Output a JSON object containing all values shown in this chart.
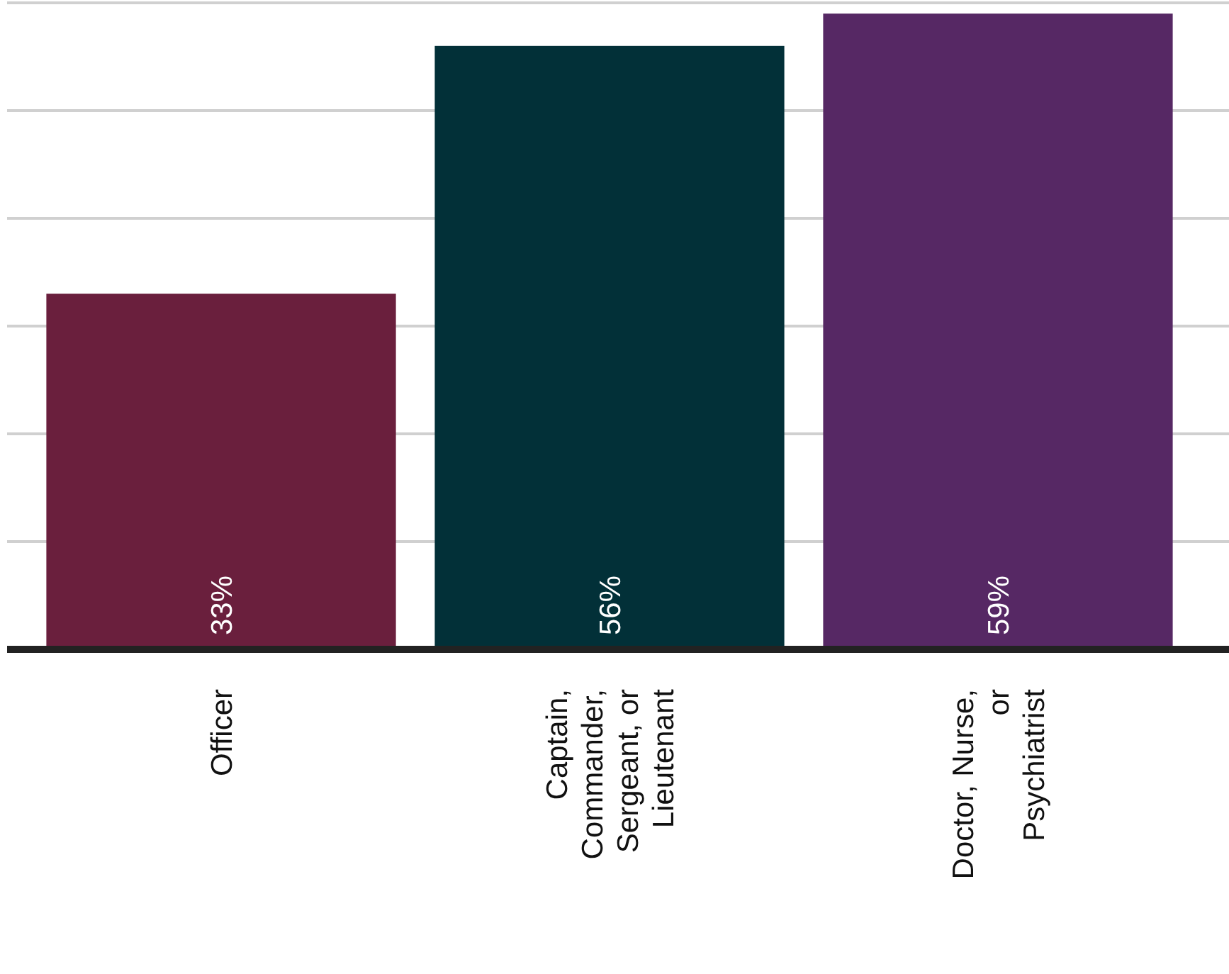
{
  "chart_data": {
    "type": "bar",
    "categories": [
      "Officer",
      "Captain, Commander, Sergeant, or Lieutenant",
      "Doctor, Nurse, or Psychiatrist"
    ],
    "values": [
      33,
      56,
      59
    ],
    "colors": [
      "#6a1f3d",
      "#023038",
      "#562864"
    ],
    "value_labels": [
      "33%",
      "56%",
      "59%"
    ],
    "ylim": [
      0,
      60
    ],
    "yticks": [
      {
        "value": 0,
        "label": null
      },
      {
        "value": 10,
        "label": null
      },
      {
        "value": 20,
        "label": null
      },
      {
        "value": 30,
        "label": null
      },
      {
        "value": 40,
        "label": null
      },
      {
        "value": 50,
        "label": null
      },
      {
        "value": 60,
        "label": null
      }
    ],
    "grid": "y",
    "tick_labels": "x"
  }
}
